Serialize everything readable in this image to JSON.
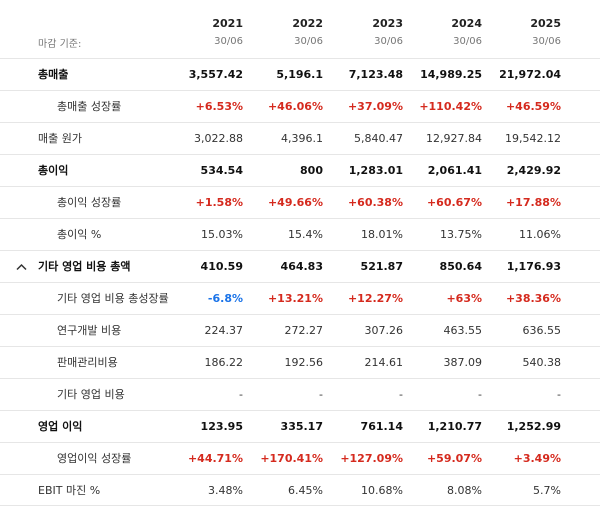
{
  "header": {
    "basis_label": "마감 기준:",
    "columns": [
      {
        "year": "2021",
        "date": "30/06"
      },
      {
        "year": "2022",
        "date": "30/06"
      },
      {
        "year": "2023",
        "date": "30/06"
      },
      {
        "year": "2024",
        "date": "30/06"
      },
      {
        "year": "2025",
        "date": "30/06"
      }
    ]
  },
  "rows": [
    {
      "label": "총매출",
      "values": [
        "3,557.42",
        "5,196.1",
        "7,123.48",
        "14,989.25",
        "21,972.04"
      ]
    },
    {
      "label": "총매출 성장률",
      "values": [
        "+6.53%",
        "+46.06%",
        "+37.09%",
        "+110.42%",
        "+46.59%"
      ]
    },
    {
      "label": "매출 원가",
      "values": [
        "3,022.88",
        "4,396.1",
        "5,840.47",
        "12,927.84",
        "19,542.12"
      ]
    },
    {
      "label": "총이익",
      "values": [
        "534.54",
        "800",
        "1,283.01",
        "2,061.41",
        "2,429.92"
      ]
    },
    {
      "label": "총이익 성장률",
      "values": [
        "+1.58%",
        "+49.66%",
        "+60.38%",
        "+60.67%",
        "+17.88%"
      ]
    },
    {
      "label": "총이익 %",
      "values": [
        "15.03%",
        "15.4%",
        "18.01%",
        "13.75%",
        "11.06%"
      ]
    },
    {
      "label": "기타 영업 비용 총액",
      "values": [
        "410.59",
        "464.83",
        "521.87",
        "850.64",
        "1,176.93"
      ]
    },
    {
      "label": "기타 영업 비용 총성장률",
      "values": [
        "-6.8%",
        "+13.21%",
        "+12.27%",
        "+63%",
        "+38.36%"
      ]
    },
    {
      "label": "연구개발 비용",
      "values": [
        "224.37",
        "272.27",
        "307.26",
        "463.55",
        "636.55"
      ]
    },
    {
      "label": "판매관리비용",
      "values": [
        "186.22",
        "192.56",
        "214.61",
        "387.09",
        "540.38"
      ]
    },
    {
      "label": "기타 영업 비용",
      "values": [
        "-",
        "-",
        "-",
        "-",
        "-"
      ]
    },
    {
      "label": "영업 이익",
      "values": [
        "123.95",
        "335.17",
        "761.14",
        "1,210.77",
        "1,252.99"
      ]
    },
    {
      "label": "영업이익 성장률",
      "values": [
        "+44.71%",
        "+170.41%",
        "+127.09%",
        "+59.07%",
        "+3.49%"
      ]
    },
    {
      "label": "EBIT 마진 %",
      "values": [
        "3.48%",
        "6.45%",
        "10.68%",
        "8.08%",
        "5.7%"
      ]
    }
  ],
  "collapse_icon": "chevron-up-icon",
  "colors": {
    "positive": "#d52a1e",
    "negative": "#1a73e8"
  }
}
